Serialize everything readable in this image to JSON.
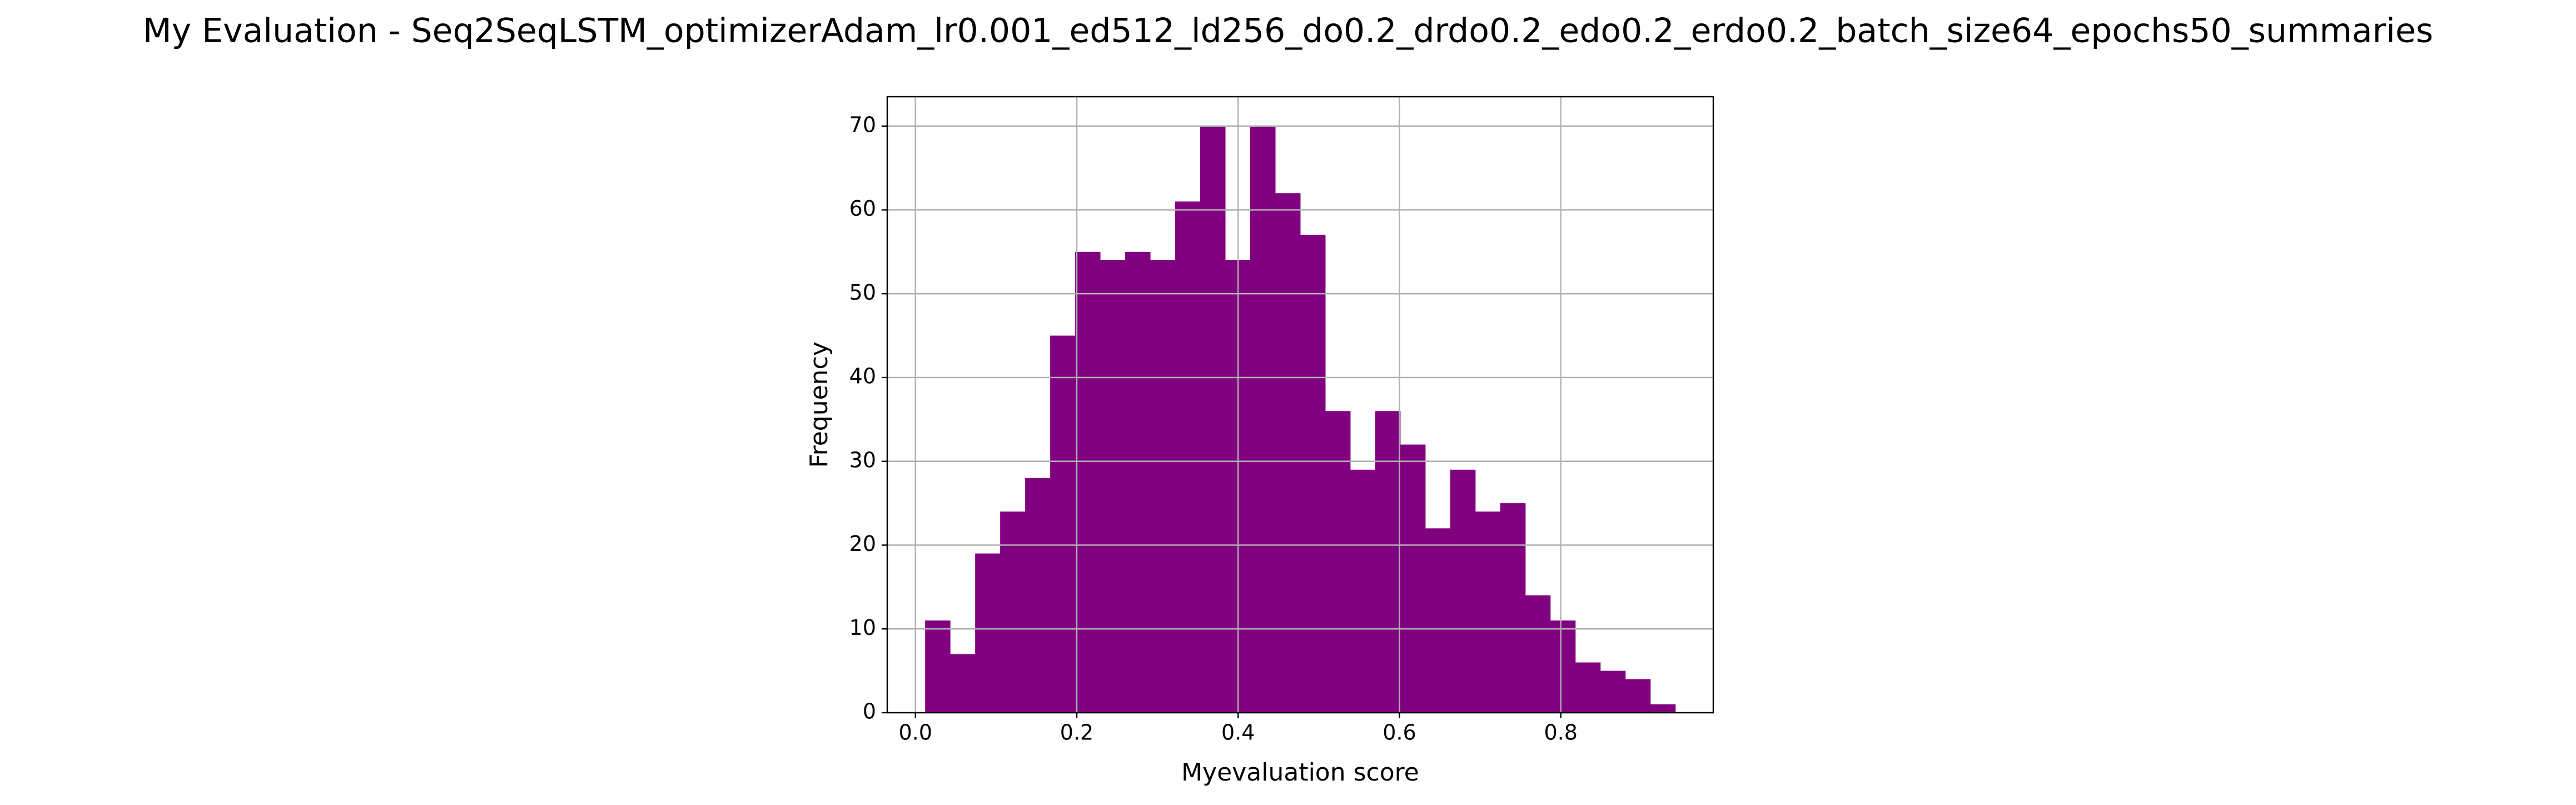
{
  "chart_data": {
    "type": "histogram",
    "title": "My Evaluation - Seq2SeqLSTM_optimizerAdam_lr0.001_ed512_ld256_do0.2_drdo0.2_edo0.2_erdo0.2_batch_size64_epochs50_summaries",
    "x_label": "Myevaluation score",
    "y_label": "Frequency",
    "bins": [
      0.012,
      0.043,
      0.074,
      0.105,
      0.136,
      0.167,
      0.198,
      0.229,
      0.26,
      0.291,
      0.322,
      0.353,
      0.384,
      0.415,
      0.446,
      0.477,
      0.508,
      0.539,
      0.57,
      0.601,
      0.632,
      0.663,
      0.694,
      0.725,
      0.756,
      0.787,
      0.818,
      0.849,
      0.88,
      0.911,
      0.942
    ],
    "counts": [
      11,
      7,
      19,
      24,
      28,
      45,
      55,
      54,
      55,
      54,
      61,
      70,
      54,
      70,
      62,
      57,
      36,
      29,
      36,
      32,
      22,
      29,
      24,
      25,
      14,
      11,
      6,
      5,
      4,
      1
    ],
    "color": "#800080",
    "xlim": [
      -0.035,
      0.989
    ],
    "ylim": [
      0,
      73.5
    ],
    "xticks": [
      {
        "value": 0,
        "label": "0.0"
      },
      0.2,
      0.4,
      0.6,
      0.8
    ],
    "yticks": [
      0,
      10,
      20,
      30,
      40,
      50,
      60,
      70
    ],
    "grid": true
  }
}
